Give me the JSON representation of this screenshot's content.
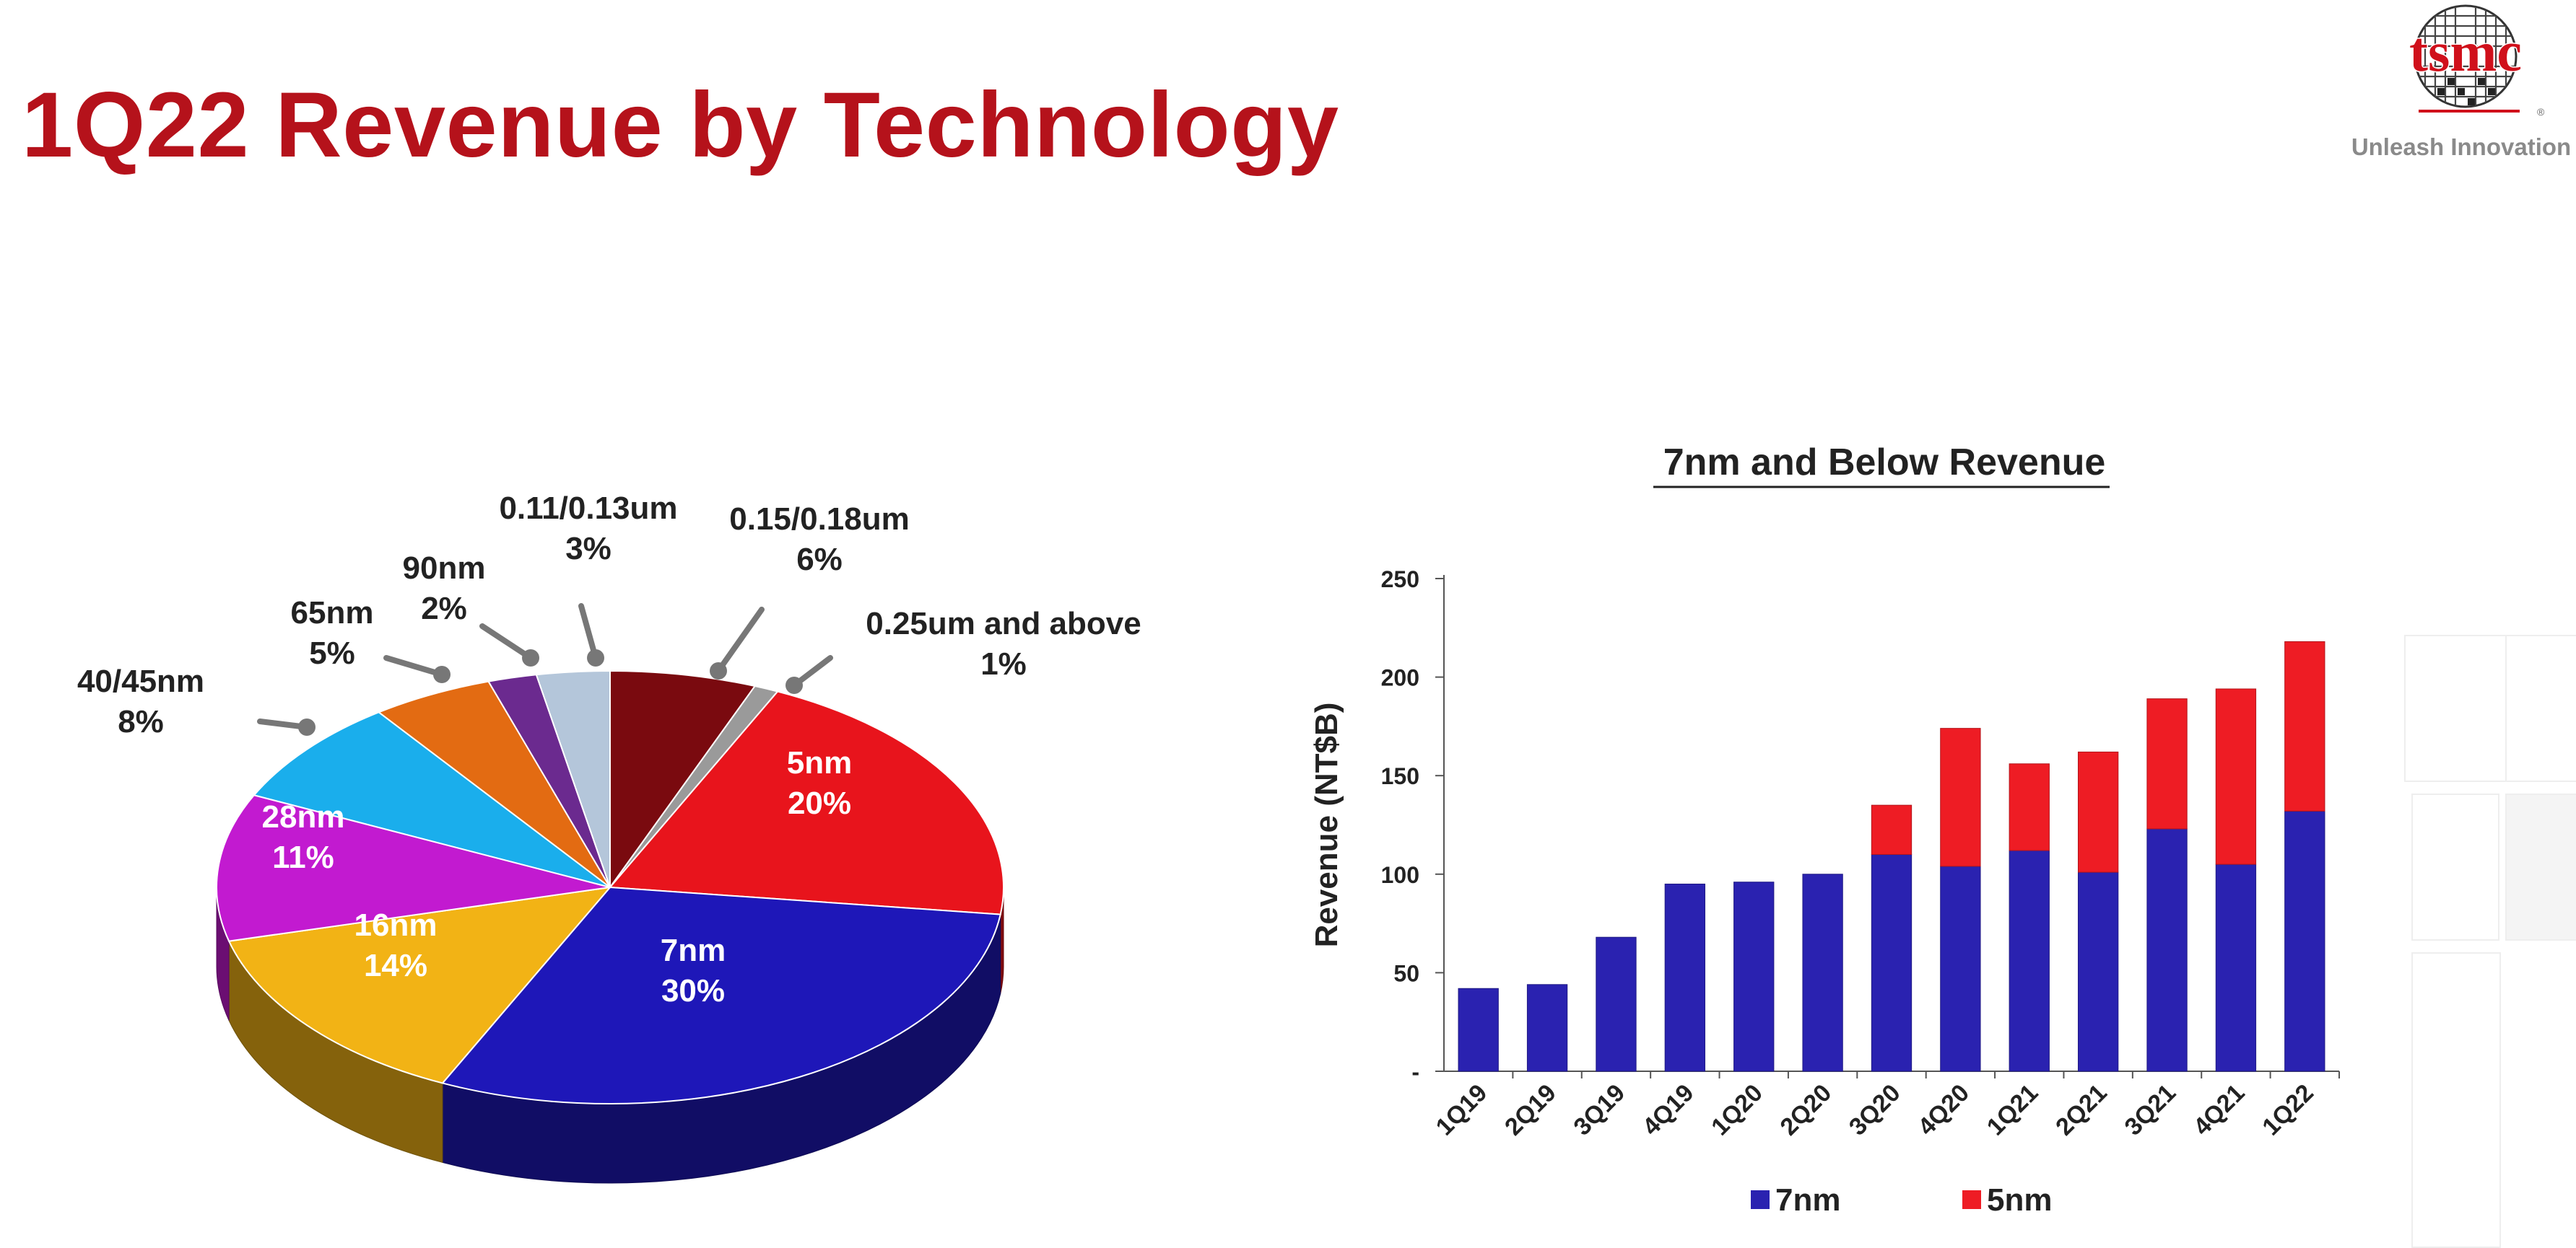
{
  "page": {
    "title": "1Q22 Revenue by Technology",
    "logo_text": "tsmc",
    "tagline": "Unleash Innovation"
  },
  "chart_data": [
    {
      "type": "pie",
      "title": "",
      "slices": [
        {
          "label": "5nm",
          "value": 20,
          "display": "20%",
          "color": "#e8141c"
        },
        {
          "label": "7nm",
          "value": 30,
          "display": "30%",
          "color": "#1e17b8"
        },
        {
          "label": "16nm",
          "value": 14,
          "display": "14%",
          "color": "#f2b315"
        },
        {
          "label": "28nm",
          "value": 11,
          "display": "11%",
          "color": "#c21ad0"
        },
        {
          "label": "40/45nm",
          "value": 8,
          "display": "8%",
          "color": "#1aaeec"
        },
        {
          "label": "65nm",
          "value": 5,
          "display": "5%",
          "color": "#e36b12"
        },
        {
          "label": "90nm",
          "value": 2,
          "display": "2%",
          "color": "#6b2a8f"
        },
        {
          "label": "0.11/0.13um",
          "value": 3,
          "display": "3%",
          "color": "#b4c6da"
        },
        {
          "label": "0.15/0.18um",
          "value": 6,
          "display": "6%",
          "color": "#7a0a0f"
        },
        {
          "label": "0.25um and above",
          "value": 1,
          "display": "1%",
          "color": "#9a9a9a"
        }
      ]
    },
    {
      "type": "bar",
      "stacked": true,
      "title": "7nm and Below Revenue",
      "xlabel": "",
      "ylabel": "Revenue (NT$B)",
      "ylim": [
        0,
        250
      ],
      "yticks": [
        "-",
        "50",
        "100",
        "150",
        "200",
        "250"
      ],
      "categories": [
        "1Q19",
        "2Q19",
        "3Q19",
        "4Q19",
        "1Q20",
        "2Q20",
        "3Q20",
        "4Q20",
        "1Q21",
        "2Q21",
        "3Q21",
        "4Q21",
        "1Q22"
      ],
      "series": [
        {
          "name": "7nm",
          "color": "#2a22b0",
          "values": [
            42,
            44,
            68,
            95,
            96,
            100,
            110,
            104,
            112,
            101,
            123,
            105,
            132
          ]
        },
        {
          "name": "5nm",
          "color": "#ee1c24",
          "values": [
            0,
            0,
            0,
            0,
            0,
            0,
            25,
            70,
            44,
            61,
            66,
            89,
            86
          ]
        }
      ],
      "legend": "bottom"
    }
  ]
}
